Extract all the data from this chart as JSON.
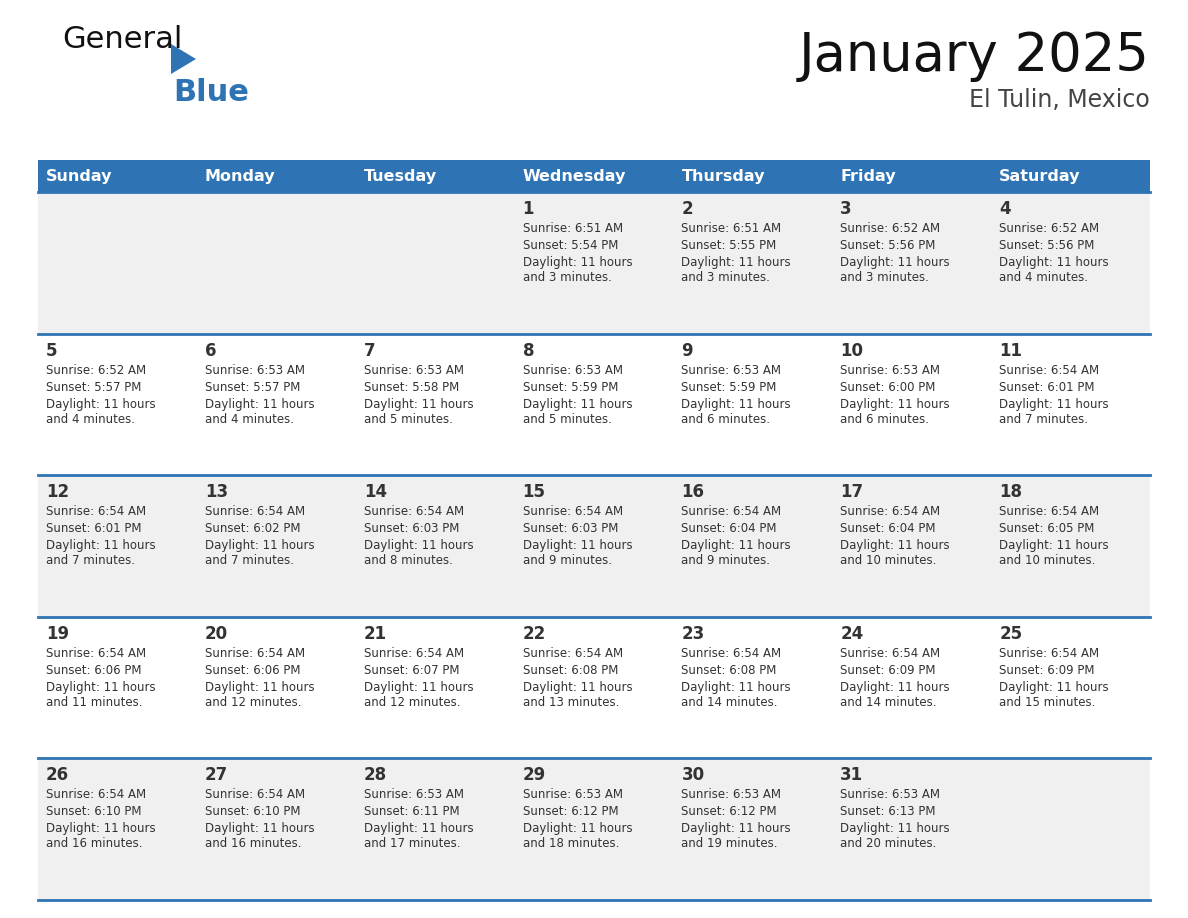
{
  "title": "January 2025",
  "subtitle": "El Tulin, Mexico",
  "days_of_week": [
    "Sunday",
    "Monday",
    "Tuesday",
    "Wednesday",
    "Thursday",
    "Friday",
    "Saturday"
  ],
  "header_bg": "#2E74B5",
  "header_text": "#FFFFFF",
  "cell_bg_odd": "#F0F0F0",
  "cell_bg_even": "#FFFFFF",
  "row_line_color": "#2E74B5",
  "text_color": "#333333",
  "title_color": "#111111",
  "subtitle_color": "#444444",
  "logo_general_color": "#111111",
  "logo_blue_color": "#2E74B5",
  "logo_tri_color": "#2E74B5",
  "calendar": [
    [
      null,
      null,
      null,
      {
        "day": 1,
        "sunrise": "6:51 AM",
        "sunset": "5:54 PM",
        "daylight": "11 hours and 3 minutes"
      },
      {
        "day": 2,
        "sunrise": "6:51 AM",
        "sunset": "5:55 PM",
        "daylight": "11 hours and 3 minutes"
      },
      {
        "day": 3,
        "sunrise": "6:52 AM",
        "sunset": "5:56 PM",
        "daylight": "11 hours and 3 minutes"
      },
      {
        "day": 4,
        "sunrise": "6:52 AM",
        "sunset": "5:56 PM",
        "daylight": "11 hours and 4 minutes"
      }
    ],
    [
      {
        "day": 5,
        "sunrise": "6:52 AM",
        "sunset": "5:57 PM",
        "daylight": "11 hours and 4 minutes"
      },
      {
        "day": 6,
        "sunrise": "6:53 AM",
        "sunset": "5:57 PM",
        "daylight": "11 hours and 4 minutes"
      },
      {
        "day": 7,
        "sunrise": "6:53 AM",
        "sunset": "5:58 PM",
        "daylight": "11 hours and 5 minutes"
      },
      {
        "day": 8,
        "sunrise": "6:53 AM",
        "sunset": "5:59 PM",
        "daylight": "11 hours and 5 minutes"
      },
      {
        "day": 9,
        "sunrise": "6:53 AM",
        "sunset": "5:59 PM",
        "daylight": "11 hours and 6 minutes"
      },
      {
        "day": 10,
        "sunrise": "6:53 AM",
        "sunset": "6:00 PM",
        "daylight": "11 hours and 6 minutes"
      },
      {
        "day": 11,
        "sunrise": "6:54 AM",
        "sunset": "6:01 PM",
        "daylight": "11 hours and 7 minutes"
      }
    ],
    [
      {
        "day": 12,
        "sunrise": "6:54 AM",
        "sunset": "6:01 PM",
        "daylight": "11 hours and 7 minutes"
      },
      {
        "day": 13,
        "sunrise": "6:54 AM",
        "sunset": "6:02 PM",
        "daylight": "11 hours and 7 minutes"
      },
      {
        "day": 14,
        "sunrise": "6:54 AM",
        "sunset": "6:03 PM",
        "daylight": "11 hours and 8 minutes"
      },
      {
        "day": 15,
        "sunrise": "6:54 AM",
        "sunset": "6:03 PM",
        "daylight": "11 hours and 9 minutes"
      },
      {
        "day": 16,
        "sunrise": "6:54 AM",
        "sunset": "6:04 PM",
        "daylight": "11 hours and 9 minutes"
      },
      {
        "day": 17,
        "sunrise": "6:54 AM",
        "sunset": "6:04 PM",
        "daylight": "11 hours and 10 minutes"
      },
      {
        "day": 18,
        "sunrise": "6:54 AM",
        "sunset": "6:05 PM",
        "daylight": "11 hours and 10 minutes"
      }
    ],
    [
      {
        "day": 19,
        "sunrise": "6:54 AM",
        "sunset": "6:06 PM",
        "daylight": "11 hours and 11 minutes"
      },
      {
        "day": 20,
        "sunrise": "6:54 AM",
        "sunset": "6:06 PM",
        "daylight": "11 hours and 12 minutes"
      },
      {
        "day": 21,
        "sunrise": "6:54 AM",
        "sunset": "6:07 PM",
        "daylight": "11 hours and 12 minutes"
      },
      {
        "day": 22,
        "sunrise": "6:54 AM",
        "sunset": "6:08 PM",
        "daylight": "11 hours and 13 minutes"
      },
      {
        "day": 23,
        "sunrise": "6:54 AM",
        "sunset": "6:08 PM",
        "daylight": "11 hours and 14 minutes"
      },
      {
        "day": 24,
        "sunrise": "6:54 AM",
        "sunset": "6:09 PM",
        "daylight": "11 hours and 14 minutes"
      },
      {
        "day": 25,
        "sunrise": "6:54 AM",
        "sunset": "6:09 PM",
        "daylight": "11 hours and 15 minutes"
      }
    ],
    [
      {
        "day": 26,
        "sunrise": "6:54 AM",
        "sunset": "6:10 PM",
        "daylight": "11 hours and 16 minutes"
      },
      {
        "day": 27,
        "sunrise": "6:54 AM",
        "sunset": "6:10 PM",
        "daylight": "11 hours and 16 minutes"
      },
      {
        "day": 28,
        "sunrise": "6:53 AM",
        "sunset": "6:11 PM",
        "daylight": "11 hours and 17 minutes"
      },
      {
        "day": 29,
        "sunrise": "6:53 AM",
        "sunset": "6:12 PM",
        "daylight": "11 hours and 18 minutes"
      },
      {
        "day": 30,
        "sunrise": "6:53 AM",
        "sunset": "6:12 PM",
        "daylight": "11 hours and 19 minutes"
      },
      {
        "day": 31,
        "sunrise": "6:53 AM",
        "sunset": "6:13 PM",
        "daylight": "11 hours and 20 minutes"
      },
      null
    ]
  ]
}
